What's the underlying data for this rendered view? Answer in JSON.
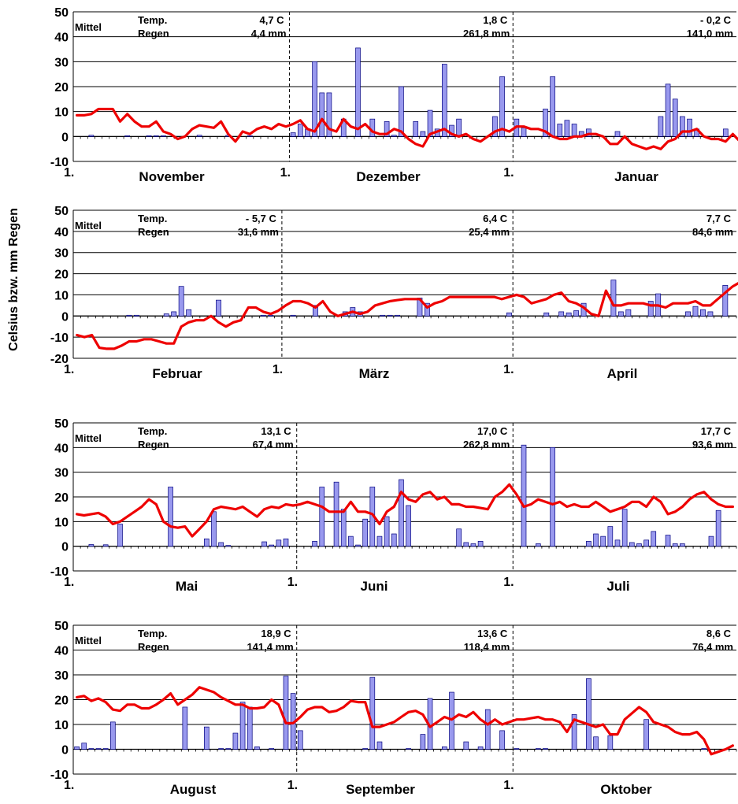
{
  "ylabel": "Celsius bzw. mm Regen",
  "colors": {
    "temperature": "#ee0000",
    "rain_fill": "#9999ee",
    "rain_stroke": "#00007f",
    "grid": "#000000"
  },
  "chart_data": [
    {
      "type": "bar+line",
      "ylim": [
        -10,
        50
      ],
      "yticks": [
        "50",
        "40",
        "30",
        "20",
        "10",
        "0",
        "-10"
      ],
      "months": [
        {
          "name": "November",
          "start_label": "1.",
          "days": 30,
          "mittel": "Mittel",
          "temp_label": "Temp.",
          "rain_label": "Regen",
          "temp_mean": "4,7   C",
          "rain_total": "4,4  mm"
        },
        {
          "name": "Dezember",
          "start_label": "1.",
          "days": 31,
          "mittel": "",
          "temp_label": "",
          "rain_label": "",
          "temp_mean": "1,8   C",
          "rain_total": "261,8  mm"
        },
        {
          "name": "Januar",
          "start_label": "1.",
          "days": 31,
          "mittel": "",
          "temp_label": "",
          "rain_label": "",
          "temp_mean": "- 0,2   C",
          "rain_total": "141,0  mm"
        }
      ],
      "series": [
        {
          "name": "Temperatur",
          "type": "line",
          "values": [
            8.5,
            8.5,
            9,
            11,
            11,
            11,
            6,
            9,
            6,
            4,
            4,
            6,
            2,
            1,
            -1,
            0,
            3,
            4.5,
            4,
            3.5,
            6,
            1,
            -2,
            2,
            1,
            3,
            4,
            3,
            5,
            4,
            5,
            6.5,
            3,
            2,
            7,
            3,
            2,
            7,
            4,
            3,
            5,
            2,
            1,
            1,
            3,
            2,
            -1,
            -3,
            -4,
            1,
            2,
            3,
            1,
            0,
            1,
            -1,
            -2,
            0,
            2,
            3,
            2,
            4,
            4,
            3,
            3,
            2,
            0,
            -1,
            -1,
            0,
            0,
            1,
            1,
            0,
            -3,
            -3,
            0,
            -3,
            -4,
            -5,
            -4,
            -5,
            -2,
            -1,
            2,
            2,
            3,
            0,
            -1,
            -1,
            -2,
            1,
            -2
          ]
        },
        {
          "name": "Regen",
          "type": "bar",
          "values": [
            0,
            0,
            0.5,
            0,
            0,
            0,
            0,
            0.2,
            0,
            0,
            0.3,
            0.3,
            0.3,
            0,
            0,
            0,
            0,
            0.5,
            0,
            0,
            0,
            0.5,
            0,
            0,
            0.3,
            0,
            0,
            0,
            0,
            0,
            1.5,
            5,
            3,
            30,
            17.5,
            17.5,
            0,
            7,
            0,
            35.5,
            0,
            7,
            0,
            6,
            0.5,
            20,
            0,
            6,
            2,
            10.5,
            3,
            29,
            4.5,
            7,
            0,
            0,
            0,
            0,
            8,
            24,
            0,
            7,
            3.5,
            0,
            0,
            11,
            24,
            5,
            6.5,
            5,
            2,
            3,
            0,
            0,
            0,
            2,
            0,
            0,
            0,
            0,
            0,
            8,
            21,
            15,
            8,
            7,
            3,
            0,
            0,
            0,
            3,
            0
          ]
        }
      ]
    },
    {
      "type": "bar+line",
      "ylim": [
        -20,
        50
      ],
      "yticks": [
        "50",
        "40",
        "30",
        "20",
        "10",
        "0",
        "-10",
        "-20"
      ],
      "months": [
        {
          "name": "Februar",
          "start_label": "1.",
          "days": 28,
          "mittel": "Mittel",
          "temp_label": "Temp.",
          "rain_label": "Regen",
          "temp_mean": "- 5,7   C",
          "rain_total": "31,6  mm"
        },
        {
          "name": "März",
          "start_label": "1.",
          "days": 31,
          "mittel": "",
          "temp_label": "",
          "rain_label": "",
          "temp_mean": "6,4   C",
          "rain_total": "25,4  mm"
        },
        {
          "name": "April",
          "start_label": "1.",
          "days": 30,
          "mittel": "",
          "temp_label": "",
          "rain_label": "",
          "temp_mean": "7,7   C",
          "rain_total": "84,6  mm"
        }
      ],
      "series": [
        {
          "name": "Temperatur",
          "type": "line",
          "values": [
            -9,
            -10,
            -9,
            -15,
            -15.5,
            -15.5,
            -14,
            -12,
            -12,
            -11,
            -11,
            -12,
            -13,
            -13,
            -5,
            -3,
            -2,
            -2,
            0,
            -3,
            -5,
            -3,
            -2,
            4,
            4,
            2,
            1,
            2.5,
            5,
            7,
            7,
            6,
            4,
            7,
            2,
            0,
            1,
            2,
            1,
            2,
            5,
            6,
            7,
            7.5,
            8,
            8,
            8,
            4,
            6,
            7,
            9,
            9,
            9,
            9,
            9,
            9,
            9,
            8,
            9,
            10,
            9,
            6,
            7,
            8,
            10,
            11,
            7,
            6,
            4,
            1,
            0,
            12,
            5,
            5,
            6,
            6,
            6,
            5,
            5,
            4,
            6,
            6,
            6,
            7,
            5,
            5,
            8,
            11,
            14,
            16,
            18
          ]
        },
        {
          "name": "Regen",
          "type": "bar",
          "values": [
            0,
            0,
            0,
            0,
            0,
            0,
            0,
            0.3,
            0.3,
            0,
            0,
            0,
            1,
            2,
            14,
            3,
            0,
            0,
            0,
            7.5,
            0,
            0,
            0,
            0,
            0,
            0.3,
            0.3,
            0,
            0,
            0.3,
            0,
            0,
            5,
            0,
            0,
            0,
            2,
            4,
            2,
            0,
            0,
            0.3,
            0.3,
            0.3,
            0,
            0,
            8.5,
            6,
            0,
            0,
            0,
            0,
            0,
            0,
            0,
            0,
            0,
            0,
            1.5,
            0,
            0,
            0,
            0,
            1.5,
            0,
            2,
            1.5,
            2.5,
            6,
            0,
            0,
            0,
            17,
            2,
            3,
            0,
            0,
            7,
            10.5,
            0,
            0,
            0,
            2,
            4.5,
            3,
            2,
            0,
            14.5,
            0,
            0,
            0
          ]
        }
      ]
    },
    {
      "type": "bar+line",
      "ylim": [
        -10,
        50
      ],
      "yticks": [
        "50",
        "40",
        "30",
        "20",
        "10",
        "0",
        "-10"
      ],
      "months": [
        {
          "name": "Mai",
          "start_label": "1.",
          "days": 31,
          "mittel": "Mittel",
          "temp_label": "Temp.",
          "rain_label": "Regen",
          "temp_mean": "13,1   C",
          "rain_total": "67,4  mm"
        },
        {
          "name": "Juni",
          "start_label": "1.",
          "days": 30,
          "mittel": "",
          "temp_label": "",
          "rain_label": "",
          "temp_mean": "17,0   C",
          "rain_total": "262,8  mm"
        },
        {
          "name": "Juli",
          "start_label": "1.",
          "days": 31,
          "mittel": "",
          "temp_label": "",
          "rain_label": "",
          "temp_mean": "17,7   C",
          "rain_total": "93,6  mm"
        }
      ],
      "series": [
        {
          "name": "Temperatur",
          "type": "line",
          "values": [
            13,
            12.5,
            13,
            13.5,
            12,
            9,
            10,
            12,
            14,
            16,
            19,
            17,
            10,
            8,
            7.5,
            8,
            4,
            7,
            10,
            15,
            16,
            15.5,
            15,
            16,
            14,
            12,
            15,
            16,
            15.5,
            17,
            16.5,
            17,
            18,
            17,
            16,
            14,
            14,
            14,
            18,
            14,
            14,
            13,
            9,
            14,
            16,
            22,
            19,
            18,
            21,
            22,
            19,
            20,
            17,
            17,
            16,
            16,
            15.5,
            15,
            20,
            22,
            25,
            21,
            16,
            17,
            19,
            18,
            17,
            18,
            16,
            17,
            16,
            16,
            18,
            16,
            14,
            15,
            16,
            18,
            18,
            16,
            20,
            18,
            13,
            14,
            16,
            19,
            21,
            22,
            19,
            17,
            16,
            16
          ]
        },
        {
          "name": "Regen",
          "type": "bar",
          "values": [
            0,
            0,
            0.7,
            0,
            0.6,
            0,
            9,
            0,
            0,
            0,
            0,
            0,
            0,
            24,
            0,
            0,
            0,
            0,
            3,
            14,
            1.5,
            0.3,
            0,
            0,
            0,
            0,
            1.8,
            0.5,
            2.5,
            3,
            0,
            0,
            0,
            2,
            24,
            0,
            26,
            15,
            4,
            0.5,
            11,
            24,
            4,
            12,
            5,
            27,
            16.5,
            0,
            0,
            0,
            0,
            0,
            0,
            7,
            1.5,
            1,
            2,
            0,
            0,
            0,
            0,
            0,
            41,
            0,
            1,
            0,
            40,
            0,
            0,
            0,
            0,
            2,
            5,
            4,
            8,
            2.5,
            15,
            1.5,
            1,
            2.5,
            6,
            0,
            4.5,
            1,
            1,
            0,
            0,
            0,
            4,
            14.5,
            0,
            0,
            0,
            0,
            1.5,
            17
          ]
        }
      ]
    },
    {
      "type": "bar+line",
      "ylim": [
        -10,
        50
      ],
      "yticks": [
        "50",
        "40",
        "30",
        "20",
        "10",
        "0",
        "-10"
      ],
      "months": [
        {
          "name": "August",
          "start_label": "1.",
          "days": 31,
          "mittel": "Mittel",
          "temp_label": "Temp.",
          "rain_label": "Regen",
          "temp_mean": "18,9   C",
          "rain_total": "141,4  mm"
        },
        {
          "name": "September",
          "start_label": "1.",
          "days": 30,
          "mittel": "",
          "temp_label": "",
          "rain_label": "",
          "temp_mean": "13,6   C",
          "rain_total": "118,4  mm"
        },
        {
          "name": "Oktober",
          "start_label": "1.",
          "days": 31,
          "mittel": "",
          "temp_label": "",
          "rain_label": "",
          "temp_mean": "8,6   C",
          "rain_total": "76,4  mm"
        }
      ],
      "series": [
        {
          "name": "Temperatur",
          "type": "line",
          "values": [
            21,
            21.5,
            19.5,
            20.5,
            19,
            16,
            15.5,
            18,
            18,
            16.5,
            16.5,
            18,
            20,
            22.5,
            18,
            20,
            22,
            25,
            24,
            23,
            21,
            19.5,
            18,
            18,
            16.5,
            16.5,
            17,
            20,
            18,
            10.5,
            10.5,
            13,
            16,
            17,
            17,
            15,
            15.5,
            17,
            19.5,
            19,
            19,
            9,
            9,
            10,
            11,
            13,
            15,
            15.5,
            14,
            9,
            11,
            13,
            12,
            14,
            13,
            15,
            12,
            10,
            12,
            10,
            11,
            12,
            12,
            12.5,
            13,
            12,
            12,
            11,
            7,
            12,
            11,
            10,
            9,
            10,
            6,
            6,
            12,
            14.5,
            17,
            15,
            11,
            10,
            9,
            7,
            6,
            6,
            7,
            4,
            -2,
            -1,
            0,
            1.5
          ]
        },
        {
          "name": "Regen",
          "type": "bar",
          "values": [
            1,
            2.5,
            0.3,
            0.3,
            0.3,
            11,
            0,
            0,
            0,
            0,
            0,
            0,
            0,
            0,
            0,
            17,
            0,
            0,
            9,
            0,
            0.3,
            0.3,
            6.5,
            19,
            17,
            1,
            0,
            0.3,
            0,
            29.5,
            22.5,
            7.5,
            0,
            0,
            0,
            0,
            0,
            0,
            0,
            0,
            0.3,
            29,
            3,
            0,
            0,
            0,
            0.3,
            0,
            6,
            20.5,
            0,
            1,
            23,
            0,
            3,
            0,
            1,
            16,
            0,
            7.5,
            0,
            0.3,
            0,
            0,
            0.3,
            0.3,
            0,
            0,
            0,
            14,
            0,
            28.5,
            5,
            0,
            5.5,
            0,
            0,
            0,
            0,
            12,
            0,
            0,
            0,
            0,
            0,
            0,
            0,
            0.3,
            0,
            0,
            0,
            0,
            0,
            7,
            0.3,
            1
          ]
        }
      ]
    }
  ]
}
